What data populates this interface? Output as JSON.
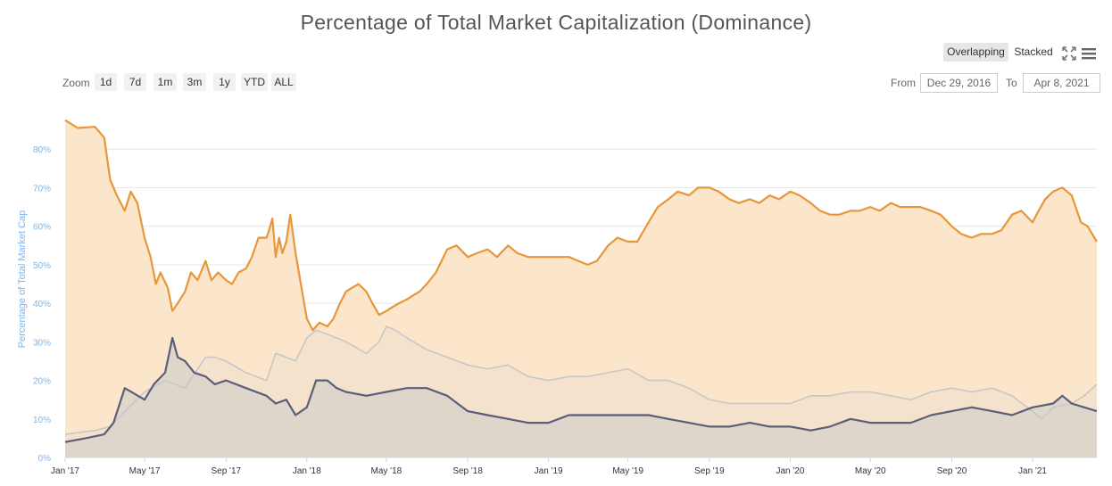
{
  "title": "Percentage of Total Market Capitalization (Dominance)",
  "view_toggle": {
    "overlapping": "Overlapping",
    "stacked": "Stacked"
  },
  "icons": {
    "fullscreen": "fullscreen-icon",
    "menu": "hamburger-menu-icon"
  },
  "zoom": {
    "label": "Zoom",
    "buttons": [
      "1d",
      "7d",
      "1m",
      "3m",
      "1y",
      "YTD",
      "ALL"
    ]
  },
  "range": {
    "from_label": "From",
    "from_value": "Dec 29, 2016",
    "to_label": "To",
    "to_value": "Apr 8, 2021"
  },
  "colors": {
    "btc": "#e8963a",
    "btc_fill": "#fbe6cc",
    "eth": "#5b5e7a",
    "eth_fill": "#d7d1cb",
    "alt": "#c7c7c7",
    "alt_fill": "#f2e0cc",
    "axis_label": "#7cb5ec"
  },
  "chart_data": {
    "type": "area",
    "ylabel": "Percentage of Total Market Cap",
    "ylim": [
      0,
      90
    ],
    "yticks": [
      "0%",
      "10%",
      "20%",
      "30%",
      "40%",
      "50%",
      "60%",
      "70%",
      "80%"
    ],
    "xticks": [
      "Jan '17",
      "May '17",
      "Sep '17",
      "Jan '18",
      "May '18",
      "Sep '18",
      "Jan '19",
      "May '19",
      "Sep '19",
      "Jan '20",
      "May '20",
      "Sep '20",
      "Jan '21"
    ],
    "x_start": "2017-01-01",
    "x_end": "2021-04-08",
    "grid": true,
    "series": [
      {
        "key": "btc",
        "x": [
          "2017-01-01",
          "2017-01-20",
          "2017-02-15",
          "2017-03-01",
          "2017-03-10",
          "2017-03-20",
          "2017-04-01",
          "2017-04-10",
          "2017-04-20",
          "2017-05-01",
          "2017-05-10",
          "2017-05-18",
          "2017-05-25",
          "2017-06-05",
          "2017-06-12",
          "2017-06-20",
          "2017-07-01",
          "2017-07-10",
          "2017-07-20",
          "2017-08-01",
          "2017-08-10",
          "2017-08-20",
          "2017-09-01",
          "2017-09-10",
          "2017-09-20",
          "2017-10-01",
          "2017-10-10",
          "2017-10-20",
          "2017-11-01",
          "2017-11-05",
          "2017-11-10",
          "2017-11-15",
          "2017-11-20",
          "2017-11-25",
          "2017-12-01",
          "2017-12-07",
          "2017-12-15",
          "2017-12-25",
          "2018-01-01",
          "2018-01-10",
          "2018-01-20",
          "2018-02-01",
          "2018-02-10",
          "2018-02-20",
          "2018-03-01",
          "2018-03-10",
          "2018-03-20",
          "2018-04-01",
          "2018-04-10",
          "2018-04-20",
          "2018-05-01",
          "2018-05-10",
          "2018-05-20",
          "2018-06-01",
          "2018-06-10",
          "2018-06-20",
          "2018-07-01",
          "2018-07-15",
          "2018-08-01",
          "2018-08-15",
          "2018-09-01",
          "2018-09-15",
          "2018-10-01",
          "2018-10-15",
          "2018-11-01",
          "2018-11-15",
          "2018-12-01",
          "2018-12-15",
          "2019-01-01",
          "2019-01-15",
          "2019-02-01",
          "2019-02-15",
          "2019-03-01",
          "2019-03-15",
          "2019-04-01",
          "2019-04-15",
          "2019-05-01",
          "2019-05-15",
          "2019-06-01",
          "2019-06-15",
          "2019-07-01",
          "2019-07-15",
          "2019-08-01",
          "2019-08-15",
          "2019-09-01",
          "2019-09-15",
          "2019-10-01",
          "2019-10-15",
          "2019-11-01",
          "2019-11-15",
          "2019-12-01",
          "2019-12-15",
          "2020-01-01",
          "2020-01-15",
          "2020-02-01",
          "2020-02-15",
          "2020-03-01",
          "2020-03-15",
          "2020-04-01",
          "2020-04-15",
          "2020-05-01",
          "2020-05-15",
          "2020-06-01",
          "2020-06-15",
          "2020-07-01",
          "2020-07-15",
          "2020-08-01",
          "2020-08-15",
          "2020-09-01",
          "2020-09-15",
          "2020-10-01",
          "2020-10-15",
          "2020-11-01",
          "2020-11-15",
          "2020-12-01",
          "2020-12-15",
          "2021-01-01",
          "2021-01-10",
          "2021-01-20",
          "2021-02-01",
          "2021-02-15",
          "2021-03-01",
          "2021-03-15",
          "2021-03-25",
          "2021-04-08"
        ],
        "values": [
          87.5,
          85.5,
          85.8,
          83,
          72,
          68,
          64,
          69,
          66,
          57,
          52,
          45,
          48,
          44,
          38,
          40,
          43,
          48,
          46,
          51,
          46,
          48,
          46,
          45,
          48,
          49,
          52,
          57,
          57,
          59,
          62,
          52,
          57,
          53,
          56,
          63,
          53,
          43,
          36,
          33,
          35,
          34,
          36,
          40,
          43,
          44,
          45,
          43,
          40,
          37,
          38,
          39,
          40,
          41,
          42,
          43,
          45,
          48,
          54,
          55,
          52,
          53,
          54,
          52,
          55,
          53,
          52,
          52,
          52,
          52,
          52,
          51,
          50,
          51,
          55,
          57,
          56,
          56,
          61,
          65,
          67,
          69,
          68,
          70,
          70,
          69,
          67,
          66,
          67,
          66,
          68,
          67,
          69,
          68,
          66,
          64,
          63,
          63,
          64,
          64,
          65,
          64,
          66,
          65,
          65,
          65,
          64,
          63,
          60,
          58,
          57,
          58,
          58,
          59,
          63,
          64,
          61,
          64,
          67,
          69,
          70,
          68,
          61,
          60,
          56
        ]
      },
      {
        "key": "alt",
        "x": [
          "2017-01-01",
          "2017-02-15",
          "2017-03-10",
          "2017-04-01",
          "2017-05-01",
          "2017-06-01",
          "2017-07-01",
          "2017-08-01",
          "2017-08-15",
          "2017-09-01",
          "2017-10-01",
          "2017-11-01",
          "2017-11-15",
          "2017-12-01",
          "2017-12-15",
          "2018-01-01",
          "2018-01-15",
          "2018-02-01",
          "2018-03-01",
          "2018-04-01",
          "2018-04-20",
          "2018-05-01",
          "2018-05-15",
          "2018-06-01",
          "2018-07-01",
          "2018-08-01",
          "2018-09-01",
          "2018-10-01",
          "2018-11-01",
          "2018-12-01",
          "2019-01-01",
          "2019-02-01",
          "2019-03-01",
          "2019-04-01",
          "2019-05-01",
          "2019-06-01",
          "2019-07-01",
          "2019-08-01",
          "2019-09-01",
          "2019-10-01",
          "2019-11-01",
          "2019-12-01",
          "2020-01-01",
          "2020-02-01",
          "2020-03-01",
          "2020-04-01",
          "2020-05-01",
          "2020-06-01",
          "2020-07-01",
          "2020-08-01",
          "2020-09-01",
          "2020-10-01",
          "2020-11-01",
          "2020-12-01",
          "2021-01-01",
          "2021-01-15",
          "2021-02-01",
          "2021-03-01",
          "2021-03-20",
          "2021-04-08"
        ],
        "values": [
          6,
          7,
          8,
          12,
          17,
          20,
          18,
          26,
          26,
          25,
          22,
          20,
          27,
          26,
          25,
          31,
          33,
          32,
          30,
          27,
          30,
          34,
          33,
          31,
          28,
          26,
          24,
          23,
          24,
          21,
          20,
          21,
          21,
          22,
          23,
          20,
          20,
          18,
          15,
          14,
          14,
          14,
          14,
          16,
          16,
          17,
          17,
          16,
          15,
          17,
          18,
          17,
          18,
          16,
          12,
          10,
          13,
          14,
          16,
          19
        ]
      },
      {
        "key": "eth",
        "x": [
          "2017-01-01",
          "2017-02-01",
          "2017-03-01",
          "2017-03-15",
          "2017-04-01",
          "2017-05-01",
          "2017-05-15",
          "2017-06-01",
          "2017-06-12",
          "2017-06-20",
          "2017-07-01",
          "2017-07-15",
          "2017-08-01",
          "2017-08-15",
          "2017-09-01",
          "2017-10-01",
          "2017-11-01",
          "2017-11-15",
          "2017-12-01",
          "2017-12-15",
          "2018-01-01",
          "2018-01-15",
          "2018-02-01",
          "2018-02-15",
          "2018-03-01",
          "2018-04-01",
          "2018-05-01",
          "2018-06-01",
          "2018-07-01",
          "2018-08-01",
          "2018-09-01",
          "2018-10-01",
          "2018-11-01",
          "2018-12-01",
          "2019-01-01",
          "2019-02-01",
          "2019-03-01",
          "2019-04-01",
          "2019-05-01",
          "2019-06-01",
          "2019-07-01",
          "2019-08-01",
          "2019-09-01",
          "2019-10-01",
          "2019-11-01",
          "2019-12-01",
          "2020-01-01",
          "2020-02-01",
          "2020-03-01",
          "2020-04-01",
          "2020-05-01",
          "2020-06-01",
          "2020-07-01",
          "2020-08-01",
          "2020-09-01",
          "2020-10-01",
          "2020-11-01",
          "2020-12-01",
          "2021-01-01",
          "2021-02-01",
          "2021-02-15",
          "2021-03-01",
          "2021-03-20",
          "2021-04-08"
        ],
        "values": [
          4,
          5,
          6,
          9,
          18,
          15,
          19,
          22,
          31,
          26,
          25,
          22,
          21,
          19,
          20,
          18,
          16,
          14,
          15,
          11,
          13,
          20,
          20,
          18,
          17,
          16,
          17,
          18,
          18,
          16,
          12,
          11,
          10,
          9,
          9,
          11,
          11,
          11,
          11,
          11,
          10,
          9,
          8,
          8,
          9,
          8,
          8,
          7,
          8,
          10,
          9,
          9,
          9,
          11,
          12,
          13,
          12,
          11,
          13,
          14,
          16,
          14,
          13,
          12
        ]
      }
    ]
  }
}
